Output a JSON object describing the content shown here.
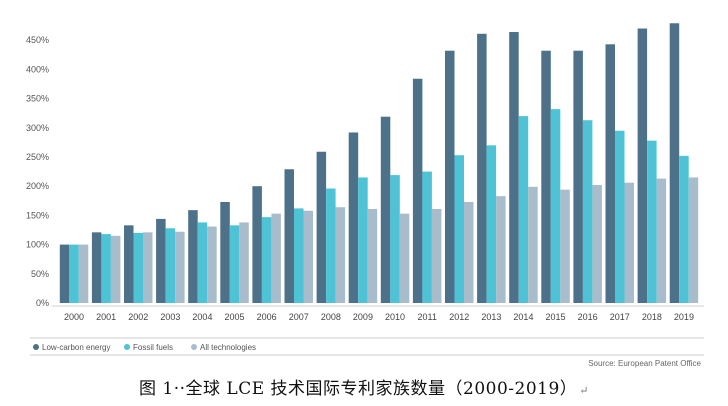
{
  "chart_data": {
    "type": "bar",
    "categories": [
      "2000",
      "2001",
      "2002",
      "2003",
      "2004",
      "2005",
      "2006",
      "2007",
      "2008",
      "2009",
      "2010",
      "2011",
      "2012",
      "2013",
      "2014",
      "2015",
      "2016",
      "2017",
      "2018",
      "2019"
    ],
    "series": [
      {
        "name": "Low-carbon energy",
        "color": "#4d7189",
        "values": [
          100,
          121,
          133,
          144,
          159,
          173,
          200,
          229,
          259,
          292,
          319,
          384,
          432,
          461,
          464,
          432,
          432,
          443,
          470,
          479
        ]
      },
      {
        "name": "Fossil fuels",
        "color": "#4fc3d6",
        "values": [
          100,
          118,
          120,
          128,
          138,
          133,
          147,
          162,
          196,
          215,
          219,
          225,
          253,
          270,
          320,
          332,
          313,
          295,
          278,
          252
        ]
      },
      {
        "name": "All technologies",
        "color": "#a9bccb",
        "values": [
          100,
          115,
          121,
          122,
          131,
          138,
          153,
          158,
          164,
          161,
          153,
          161,
          173,
          183,
          199,
          194,
          202,
          206,
          213,
          215
        ]
      }
    ],
    "y_ticks": [
      "0%",
      "50%",
      "100%",
      "150%",
      "200%",
      "250%",
      "300%",
      "350%",
      "400%",
      "450%"
    ],
    "ylim": [
      0,
      480
    ],
    "xlabel": "",
    "ylabel": "",
    "legend_position": "bottom-left",
    "source": "Source: European Patent Office"
  },
  "caption": {
    "text": "图 1··全球 LCE 技术国际专利家族数量（2000-2019）",
    "mark": "↵"
  }
}
